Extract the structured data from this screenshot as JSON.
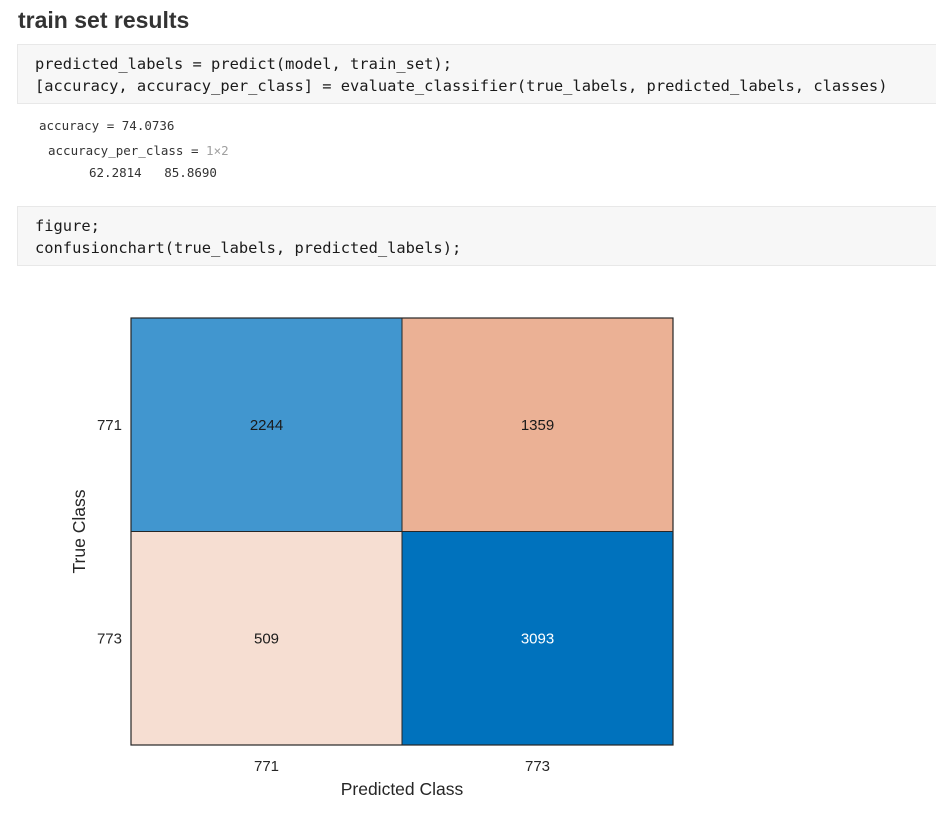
{
  "heading": "train set results",
  "cells": [
    {
      "lines": [
        "predicted_labels = predict(model, train_set);",
        "[accuracy, accuracy_per_class] = evaluate_classifier(true_labels, predicted_labels, classes)"
      ]
    },
    {
      "lines": [
        "figure;",
        "confusionchart(true_labels, predicted_labels);"
      ]
    }
  ],
  "output": {
    "accuracy_line": "accuracy = 74.0736",
    "per_class_label": "accuracy_per_class = ",
    "per_class_size": "1×2",
    "per_class_values": "62.2814   85.8690"
  },
  "chart_data": {
    "type": "heatmap",
    "xlabel": "Predicted Class",
    "ylabel": "True Class",
    "x_categories": [
      "771",
      "773"
    ],
    "y_categories": [
      "771",
      "773"
    ],
    "matrix": [
      [
        2244,
        1359
      ],
      [
        509,
        3093
      ]
    ],
    "colors": {
      "diag_high": "#0072bd",
      "diag_low": "#4196cf",
      "off_high": "#ebb195",
      "off_low": "#f6ded2",
      "border": "#262626",
      "text_dark": "#1a1a1a",
      "text_light": "#ffffff"
    }
  }
}
